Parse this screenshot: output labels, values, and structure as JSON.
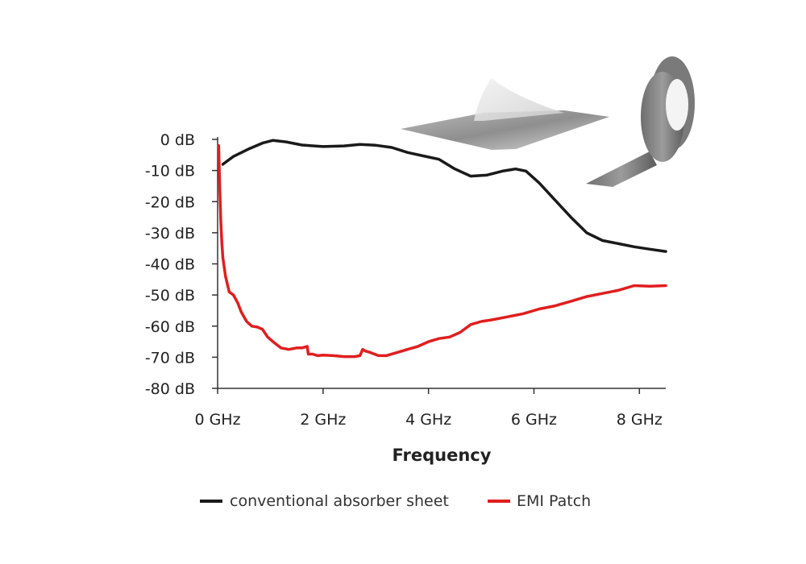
{
  "chart_data": {
    "type": "line",
    "title": "",
    "xlabel": "Frequency",
    "ylabel": "",
    "xlim": [
      0,
      8.5
    ],
    "ylim": [
      -80,
      0
    ],
    "x_ticks": [
      0,
      2,
      4,
      6,
      8
    ],
    "x_tick_labels": [
      "0 GHz",
      "2 GHz",
      "4 GHz",
      "6 GHz",
      "8 GHz"
    ],
    "y_ticks": [
      0,
      -10,
      -20,
      -30,
      -40,
      -50,
      -60,
      -70,
      -80
    ],
    "y_tick_labels": [
      "0 dB",
      "-10 dB",
      "-20 dB",
      "-30 dB",
      "-40 dB",
      "-50 dB",
      "-60 dB",
      "-70 dB",
      "-80 dB"
    ],
    "legend_position": "bottom",
    "series": [
      {
        "name": "conventional absorber sheet",
        "color": "#1a1a1a",
        "x": [
          0.1,
          0.3,
          0.6,
          0.85,
          1.05,
          1.3,
          1.6,
          2.0,
          2.4,
          2.7,
          3.0,
          3.3,
          3.6,
          3.9,
          4.2,
          4.5,
          4.8,
          5.1,
          5.4,
          5.65,
          5.85,
          6.1,
          6.4,
          6.7,
          7.0,
          7.3,
          7.6,
          7.9,
          8.2,
          8.5
        ],
        "y": [
          -8,
          -5.5,
          -3,
          -1.2,
          -0.3,
          -0.8,
          -1.8,
          -2.3,
          -2.1,
          -1.6,
          -1.9,
          -2.6,
          -4.2,
          -5.3,
          -6.4,
          -9.5,
          -11.8,
          -11.5,
          -10.2,
          -9.5,
          -10.2,
          -14,
          -19.5,
          -25,
          -30,
          -32.5,
          -33.5,
          -34.5,
          -35.3,
          -36
        ]
      },
      {
        "name": "EMI Patch",
        "color": "#e01e1e",
        "x": [
          0.02,
          0.04,
          0.06,
          0.08,
          0.1,
          0.15,
          0.22,
          0.3,
          0.38,
          0.45,
          0.55,
          0.65,
          0.75,
          0.85,
          0.95,
          1.05,
          1.2,
          1.35,
          1.5,
          1.6,
          1.7,
          1.72,
          1.8,
          1.9,
          2.0,
          2.2,
          2.4,
          2.6,
          2.7,
          2.75,
          2.8,
          2.9,
          3.05,
          3.2,
          3.4,
          3.6,
          3.8,
          4.0,
          4.2,
          4.4,
          4.6,
          4.8,
          5.0,
          5.2,
          5.5,
          5.8,
          6.1,
          6.4,
          6.7,
          7.0,
          7.3,
          7.6,
          7.9,
          8.2,
          8.5
        ],
        "y": [
          -2,
          -15,
          -26,
          -33,
          -38,
          -44,
          -49,
          -50,
          -52.5,
          -55.5,
          -58.5,
          -60,
          -60.3,
          -61,
          -63.5,
          -65,
          -67,
          -67.5,
          -67,
          -67,
          -66.5,
          -69,
          -69,
          -69.5,
          -69.3,
          -69.5,
          -69.8,
          -69.8,
          -69.5,
          -67.5,
          -68,
          -68.5,
          -69.5,
          -69.5,
          -68.5,
          -67.5,
          -66.5,
          -65,
          -64,
          -63.5,
          -62,
          -59.5,
          -58.5,
          -58,
          -57,
          -56,
          -54.5,
          -53.5,
          -52,
          -50.5,
          -49.5,
          -48.5,
          -47,
          -47.2,
          -47
        ]
      }
    ]
  }
}
